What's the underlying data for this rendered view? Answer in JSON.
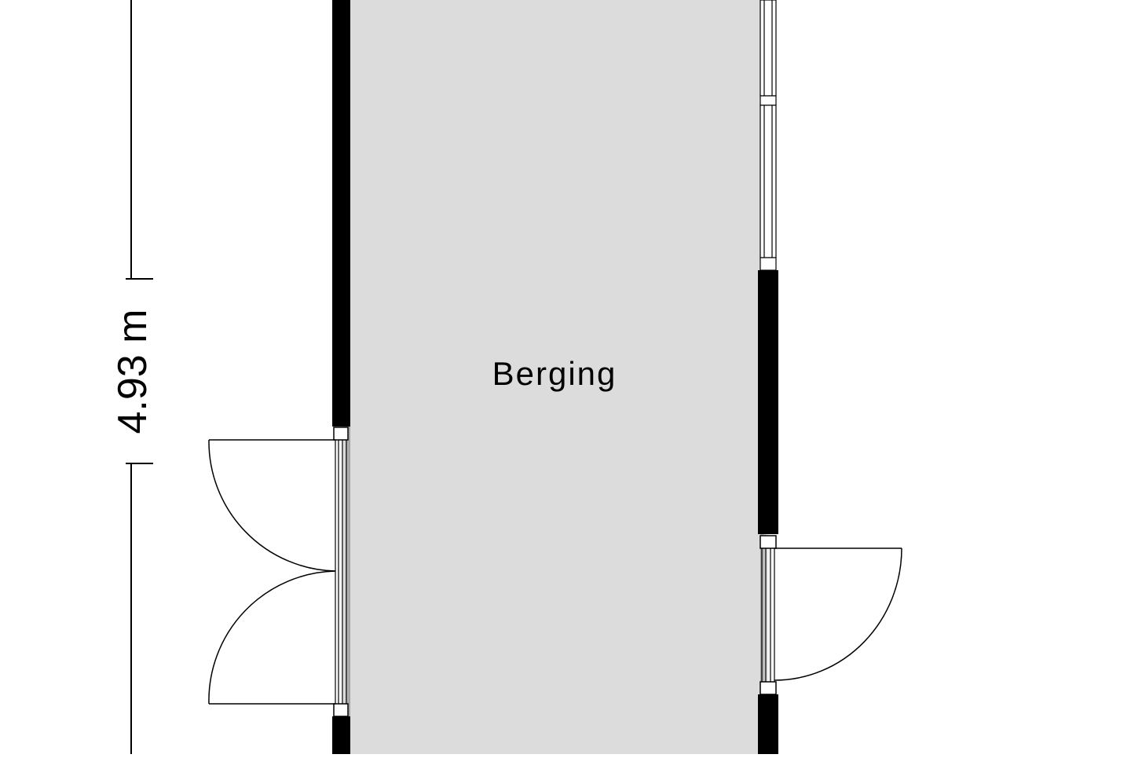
{
  "floorplan": {
    "room_label": "Berging",
    "dimension_label": "4.93 m"
  },
  "colors": {
    "floor": "#dcdcdc",
    "wall": "#000000",
    "background": "#ffffff",
    "line": "#000000"
  }
}
